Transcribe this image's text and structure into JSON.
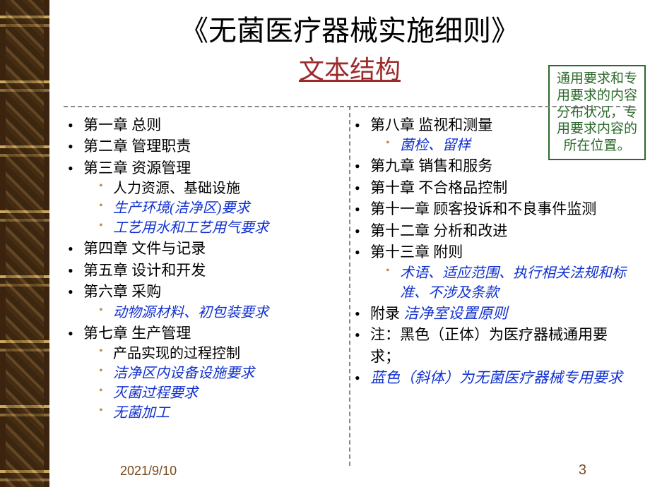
{
  "title": {
    "main": "《无菌医疗器械实施细则》",
    "sub": "文本结构"
  },
  "sidebox": "通用要求和专用要求的内容分布状况，专用要求内容的所在位置。",
  "colors": {
    "title_sub": "#9b2b2b",
    "sidebox_border": "#2b6a2b",
    "blue": "#1030d0",
    "sub_bullet": "#c08a4a",
    "footer": "#7a4a1a",
    "dash": "#888888"
  },
  "left": [
    {
      "t": "第一章  总则"
    },
    {
      "t": "第二章  管理职责"
    },
    {
      "t": "第三章  资源管理",
      "sub": [
        {
          "t": "人力资源、基础设施"
        },
        {
          "t": "生产环境(洁净区)要求",
          "blue": true
        },
        {
          "t": "工艺用水和工艺用气要求",
          "blue": true
        }
      ]
    },
    {
      "t": "第四章  文件与记录"
    },
    {
      "t": "第五章  设计和开发"
    },
    {
      "t": "第六章  采购",
      "sub": [
        {
          "t": "动物源材料、初包装要求",
          "blue": true
        }
      ]
    },
    {
      "t": "第七章  生产管理",
      "sub": [
        {
          "t": "产品实现的过程控制"
        },
        {
          "t": "洁净区内设备设施要求",
          "blue": true
        },
        {
          "t": "灭菌过程要求",
          "blue": true
        },
        {
          "t": "无菌加工",
          "blue": true
        }
      ]
    }
  ],
  "right": [
    {
      "t": "第八章  监视和测量",
      "sub": [
        {
          "t": "菌检、留样",
          "blue": true
        }
      ]
    },
    {
      "t": "第九章  销售和服务"
    },
    {
      "t": "第十章  不合格品控制"
    },
    {
      "t": "第十一章  顾客投诉和不良事件监测"
    },
    {
      "t": "第十二章  分析和改进"
    },
    {
      "t": "第十三章  附则",
      "sub": [
        {
          "t": "术语、适应范围、执行相关法规和标准、不涉及条款",
          "blue": true
        }
      ]
    },
    {
      "t": "附录  ",
      "append_blue": "洁净室设置原则"
    },
    {
      "t": "注：黑色（正体）为医疗器械通用要求；"
    },
    {
      "t": "蓝色（斜体）为无菌医疗器械专用要求",
      "all_blue": true
    }
  ],
  "footer_date": "2021/9/10",
  "page_number": "3"
}
